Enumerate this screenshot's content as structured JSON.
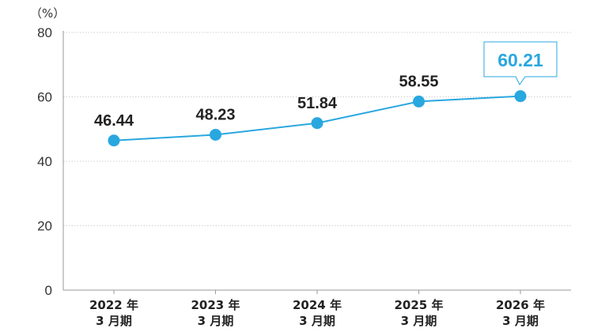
{
  "chart_data": {
    "type": "line",
    "title": "",
    "xlabel": "",
    "ylabel": "",
    "unit_label": "（%）",
    "categories": [
      [
        "2022 年",
        "3 月期"
      ],
      [
        "2023 年",
        "3 月期"
      ],
      [
        "2024 年",
        "3 月期"
      ],
      [
        "2025 年",
        "3 月期"
      ],
      [
        "2026 年",
        "3 月期"
      ]
    ],
    "values": [
      46.44,
      48.23,
      51.84,
      58.55,
      60.21
    ],
    "value_labels": [
      "46.44",
      "48.23",
      "51.84",
      "58.55",
      "60.21"
    ],
    "highlight_index": 4,
    "ylim": [
      0,
      80
    ],
    "yticks": [
      0,
      20,
      40,
      60,
      80
    ],
    "grid": true,
    "legend": "none",
    "colors": {
      "line": "#29a7df",
      "marker": "#29a7df",
      "highlight_text": "#29a7df",
      "callout_border": "#29a7df",
      "grid": "#d0d0d0",
      "axis": "#999999"
    }
  }
}
